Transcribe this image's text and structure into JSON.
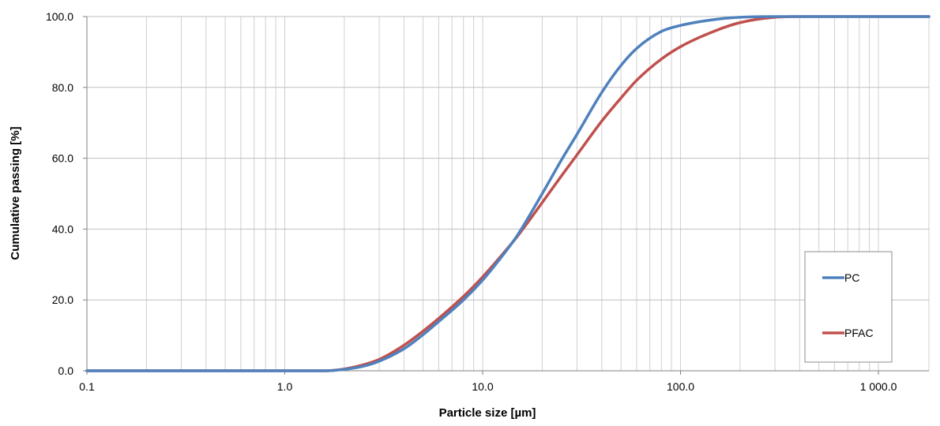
{
  "chart_data": {
    "type": "line",
    "title": "",
    "xlabel": "Particle size [µm]",
    "ylabel": "Cumulative passing  [%]",
    "x_scale": "log",
    "xlim": [
      0.1,
      1800
    ],
    "ylim": [
      0,
      100
    ],
    "x_ticks": [
      {
        "value": 0.1,
        "label": "0.1"
      },
      {
        "value": 1,
        "label": "1.0"
      },
      {
        "value": 10,
        "label": "10.0"
      },
      {
        "value": 100,
        "label": "100.0"
      },
      {
        "value": 1000,
        "label": "1 000.0"
      }
    ],
    "y_ticks": [
      {
        "value": 0,
        "label": "0.0"
      },
      {
        "value": 20,
        "label": "20.0"
      },
      {
        "value": 40,
        "label": "40.0"
      },
      {
        "value": 60,
        "label": "60.0"
      },
      {
        "value": 80,
        "label": "80.0"
      },
      {
        "value": 100,
        "label": "100.0"
      }
    ],
    "grid": {
      "vertical_minor_log": true,
      "horizontal": true
    },
    "legend_position": "bottom-right",
    "series": [
      {
        "name": "PC",
        "color": "#4F81BD",
        "points": [
          [
            0.1,
            0
          ],
          [
            1.0,
            0
          ],
          [
            1.6,
            0
          ],
          [
            2.0,
            0.4
          ],
          [
            2.5,
            1.3
          ],
          [
            3.0,
            2.7
          ],
          [
            4.0,
            6.2
          ],
          [
            5.0,
            10.2
          ],
          [
            6.0,
            13.9
          ],
          [
            8.0,
            20.0
          ],
          [
            10.0,
            25.6
          ],
          [
            12.0,
            31.0
          ],
          [
            15.0,
            38.3
          ],
          [
            20.0,
            50.0
          ],
          [
            25.0,
            59.5
          ],
          [
            30.0,
            66.8
          ],
          [
            40.0,
            78.6
          ],
          [
            50.0,
            86.2
          ],
          [
            60.0,
            91.0
          ],
          [
            80.0,
            95.8
          ],
          [
            100.0,
            97.5
          ],
          [
            150.0,
            99.2
          ],
          [
            200.0,
            99.8
          ],
          [
            300.0,
            100
          ],
          [
            1800,
            100
          ]
        ]
      },
      {
        "name": "PFAC",
        "color": "#C0504D",
        "points": [
          [
            0.1,
            0
          ],
          [
            1.0,
            0
          ],
          [
            1.6,
            0
          ],
          [
            2.0,
            0.5
          ],
          [
            2.5,
            1.7
          ],
          [
            3.0,
            3.2
          ],
          [
            4.0,
            7.2
          ],
          [
            5.0,
            11.2
          ],
          [
            6.0,
            14.8
          ],
          [
            8.0,
            21.0
          ],
          [
            10.0,
            26.5
          ],
          [
            12.0,
            31.5
          ],
          [
            15.0,
            38.0
          ],
          [
            20.0,
            47.5
          ],
          [
            25.0,
            55.0
          ],
          [
            30.0,
            61.0
          ],
          [
            40.0,
            70.5
          ],
          [
            50.0,
            77.0
          ],
          [
            60.0,
            82.0
          ],
          [
            80.0,
            88.0
          ],
          [
            100.0,
            91.5
          ],
          [
            150.0,
            96.0
          ],
          [
            200.0,
            98.3
          ],
          [
            300.0,
            99.8
          ],
          [
            400.0,
            100
          ],
          [
            1800,
            100
          ]
        ]
      }
    ]
  }
}
